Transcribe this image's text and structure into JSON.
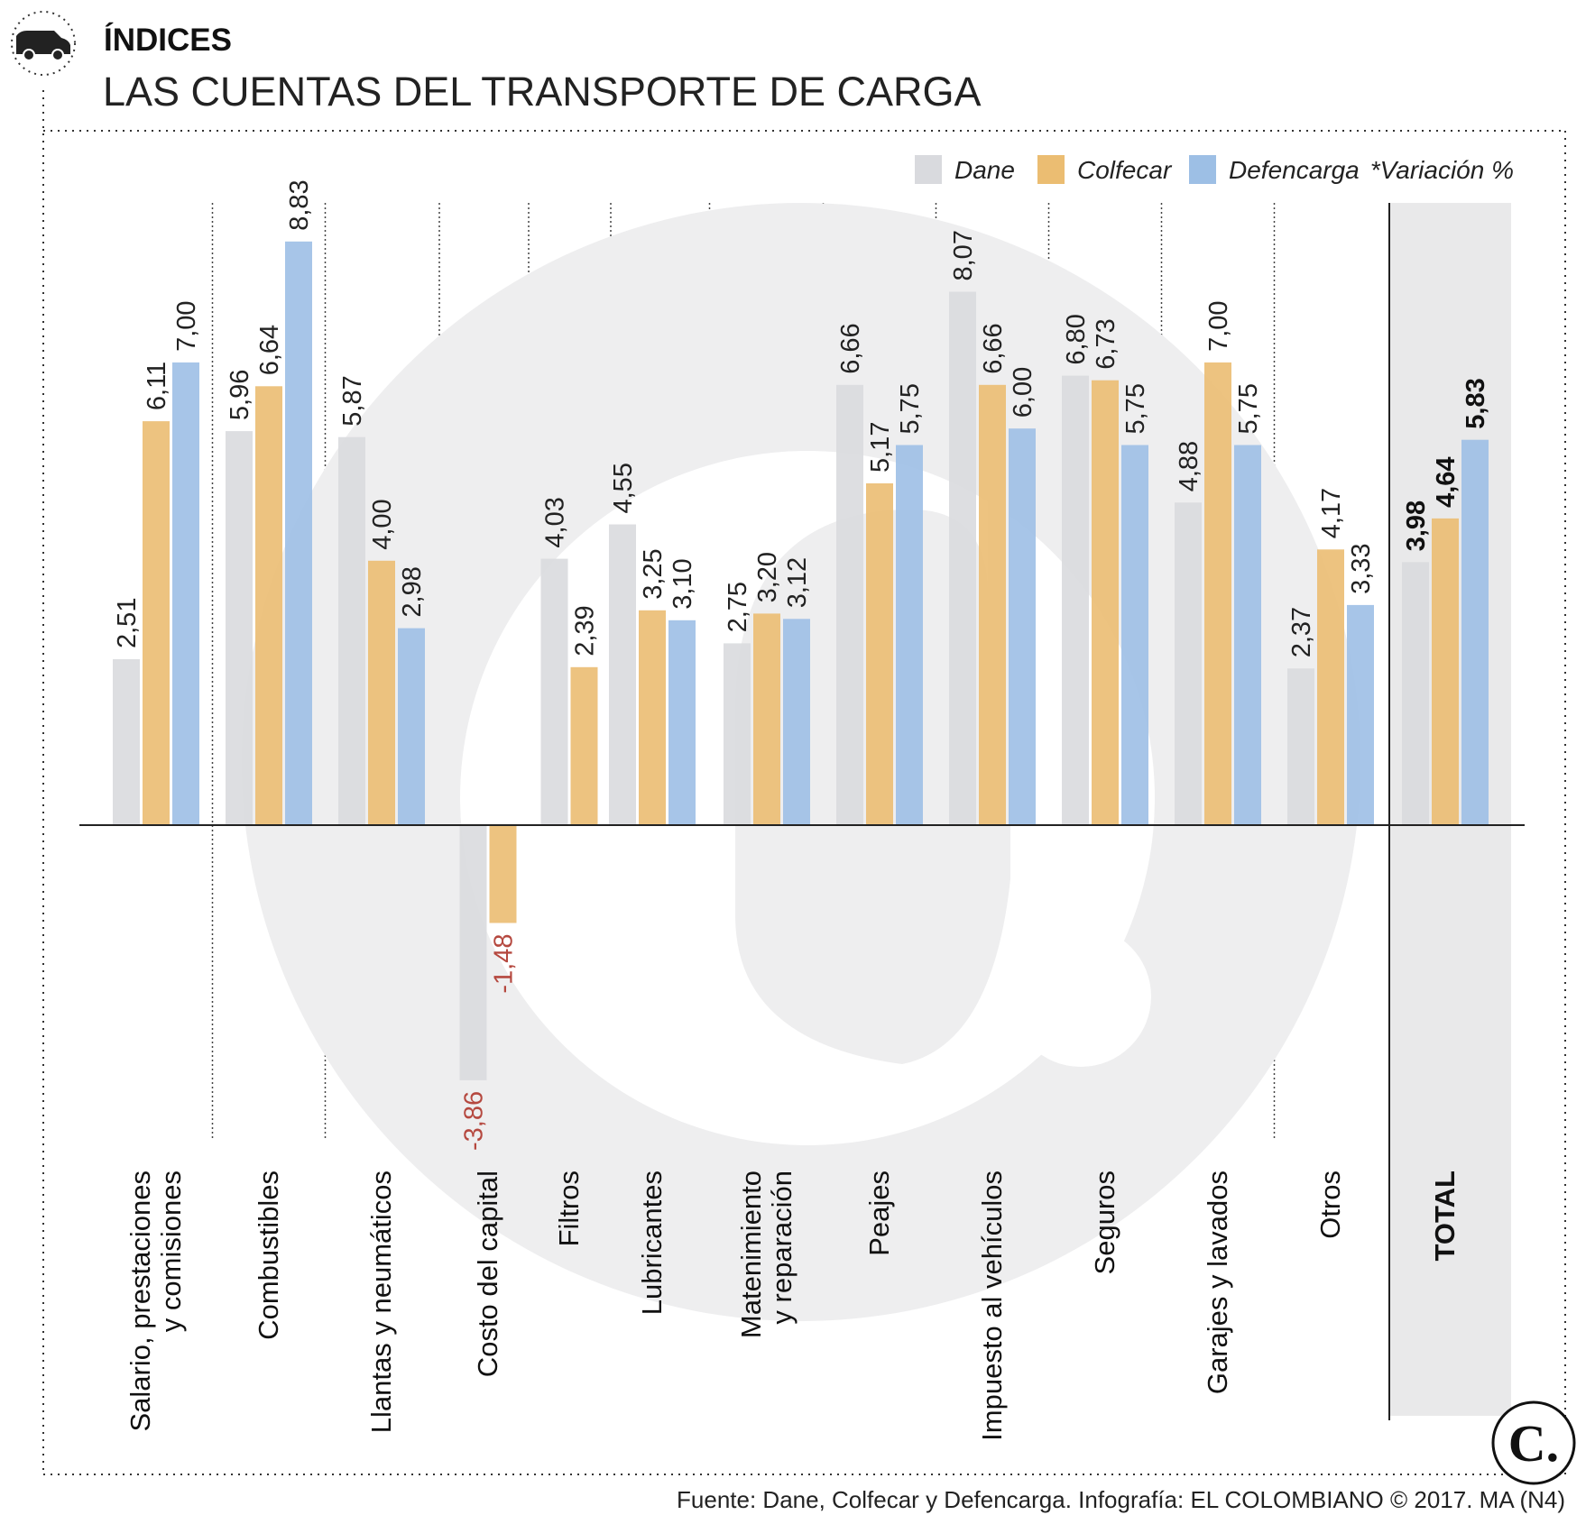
{
  "header": {
    "section": "ÍNDICES",
    "title": "LAS CUENTAS DEL TRANSPORTE DE CARGA",
    "header_icon": "truck-icon"
  },
  "legend": {
    "note": "*Variación %"
  },
  "footer": {
    "source": "Fuente: Dane, Colfecar y Defencarga. Infografía: EL COLOMBIANO © 2017. MA (N4)",
    "logo_letter": "C."
  },
  "colors": {
    "dane": "#d9dade",
    "colfecar": "#ebbd72",
    "defencarga": "#9dbfe5",
    "negative_label": "#b5483f",
    "watermark": "#eeeeef",
    "total_band": "#e9e9ea"
  },
  "chart_data": {
    "type": "bar",
    "title": "LAS CUENTAS DEL TRANSPORTE DE CARGA",
    "ylabel": "*Variación %",
    "ylim": [
      -4.7,
      9.5
    ],
    "grid": false,
    "legend_position": "top-right",
    "categories": [
      "Salario, prestaciones y comisiones",
      "Combustibles",
      "Llantas y neumáticos",
      "Costo del capital",
      "Filtros",
      "Lubricantes",
      "Matenimiento y reparación",
      "Peajes",
      "Impuesto al vehículos",
      "Seguros",
      "Garajes y lavados",
      "Otros",
      "TOTAL"
    ],
    "series": [
      {
        "name": "Dane",
        "values": [
          2.51,
          5.96,
          5.87,
          -3.86,
          4.03,
          4.55,
          2.75,
          6.66,
          8.07,
          6.8,
          4.88,
          2.37,
          3.98
        ],
        "labels": [
          "2,51",
          "5,96",
          "5,87",
          "-3,86",
          "4,03",
          "4,55",
          "2,75",
          "6,66",
          "8,07",
          "6,80",
          "4,88",
          "2,37",
          "3,98"
        ]
      },
      {
        "name": "Colfecar",
        "values": [
          6.11,
          6.64,
          4.0,
          -1.48,
          2.39,
          3.25,
          3.2,
          5.17,
          6.66,
          6.73,
          7.0,
          4.17,
          4.64
        ],
        "labels": [
          "6,11",
          "6,64",
          "4,00",
          "-1,48",
          "2,39",
          "3,25",
          "3,20",
          "5,17",
          "6,66",
          "6,73",
          "7,00",
          "4,17",
          "4,64"
        ]
      },
      {
        "name": "Defencarga",
        "values": [
          7.0,
          8.83,
          2.98,
          null,
          null,
          3.1,
          3.12,
          5.75,
          6.0,
          5.75,
          5.75,
          3.33,
          5.83
        ],
        "labels": [
          "7,00",
          "8,83",
          "2,98",
          null,
          null,
          "3,10",
          "3,12",
          "5,75",
          "6,00",
          "5,75",
          "5,75",
          "3,33",
          "5,83"
        ]
      }
    ]
  }
}
